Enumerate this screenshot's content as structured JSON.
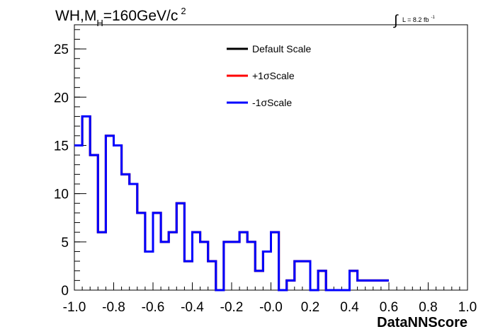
{
  "chart_data": {
    "type": "step-histogram",
    "title": {
      "main": "WH,M",
      "subscript": "H",
      "rest": "=160GeV/c",
      "superscript": "2"
    },
    "luminosity": {
      "integral": "∫",
      "text": "L = 8.2 fb",
      "exponent": "-1"
    },
    "xlabel": "DataNNScore",
    "ylabel": "",
    "xlim": [
      -1.0,
      1.0
    ],
    "ylim": [
      0,
      27.5
    ],
    "x_ticks": [
      "-1.0",
      "-0.8",
      "-0.6",
      "-0.4",
      "-0.2",
      "-0.0",
      "0.2",
      "0.4",
      "0.6",
      "0.8",
      "1.0"
    ],
    "y_ticks": [
      "0",
      "5",
      "10",
      "15",
      "20",
      "25"
    ],
    "bin_edges_start": -1.0,
    "bin_width": 0.04,
    "series": [
      {
        "name": "Default Scale",
        "color": "#000000",
        "values": [
          15,
          18,
          14,
          6,
          16,
          15,
          12,
          11,
          8,
          4,
          8,
          5,
          6,
          9,
          3,
          6,
          5,
          3,
          0,
          5,
          5,
          6,
          5,
          2,
          4,
          6,
          0,
          1,
          3,
          3,
          0,
          2,
          0,
          0,
          0,
          2,
          1,
          1,
          1,
          1
        ]
      },
      {
        "name": "+1σScale",
        "color": "#ff0000",
        "values": [
          15,
          18,
          14,
          6,
          16,
          15,
          12,
          11,
          8,
          4,
          8,
          5,
          6,
          9,
          3,
          6,
          5,
          3,
          0,
          5,
          5,
          6,
          5,
          2,
          4,
          6,
          0,
          1,
          3,
          3,
          0,
          2,
          0,
          0,
          0,
          2,
          1,
          1,
          1,
          1
        ]
      },
      {
        "name": "-1σScale",
        "color": "#0000ff",
        "values": [
          15,
          18,
          14,
          6,
          16,
          15,
          12,
          11,
          8,
          4,
          8,
          5,
          6,
          9,
          3,
          6,
          5,
          3,
          0,
          5,
          5,
          6,
          5,
          2,
          4,
          6,
          0,
          1,
          3,
          3,
          0,
          2,
          0,
          0,
          0,
          2,
          1,
          1,
          1,
          1
        ]
      }
    ],
    "legend": {
      "position": "top-center",
      "entries": [
        {
          "label": "Default Scale",
          "color": "#000000"
        },
        {
          "label": "+1σScale",
          "color": "#ff0000"
        },
        {
          "label": "-1σScale",
          "color": "#0000ff"
        }
      ]
    },
    "grid": false
  }
}
